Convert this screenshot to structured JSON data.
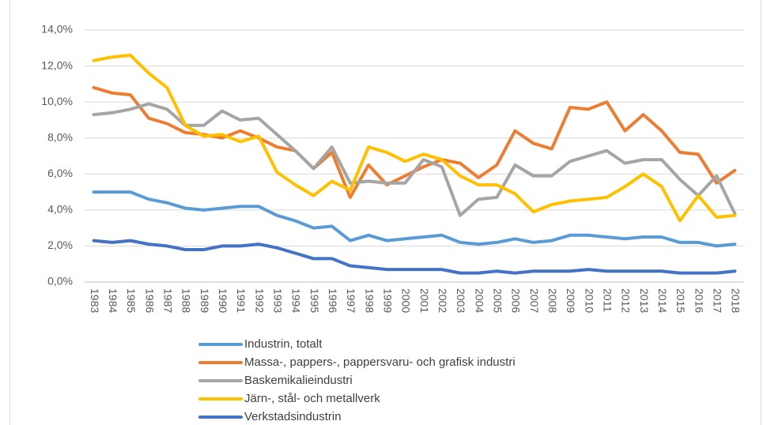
{
  "chart_data": {
    "type": "line",
    "categories": [
      "1983",
      "1984",
      "1985",
      "1986",
      "1987",
      "1988",
      "1989",
      "1990",
      "1991",
      "1992",
      "1993",
      "1994",
      "1995",
      "1996",
      "1997",
      "1998",
      "1999",
      "2000",
      "2001",
      "2002",
      "2003",
      "2004",
      "2005",
      "2006",
      "2007",
      "2008",
      "2009",
      "2010",
      "2011",
      "2012",
      "2013",
      "2014",
      "2015",
      "2016",
      "2017",
      "2018"
    ],
    "series": [
      {
        "name": "Industrin, totalt",
        "color": "#5b9bd5",
        "values": [
          5.0,
          5.0,
          5.0,
          4.6,
          4.4,
          4.1,
          4.0,
          4.1,
          4.2,
          4.2,
          3.7,
          3.4,
          3.0,
          3.1,
          2.3,
          2.6,
          2.3,
          2.4,
          2.5,
          2.6,
          2.2,
          2.1,
          2.2,
          2.4,
          2.2,
          2.3,
          2.6,
          2.6,
          2.5,
          2.4,
          2.5,
          2.5,
          2.2,
          2.2,
          2.0,
          2.1
        ]
      },
      {
        "name": "Massa-, pappers-, pappersvaru- och grafisk industri",
        "color": "#ed7d31",
        "values": [
          10.8,
          10.5,
          10.4,
          9.1,
          8.8,
          8.3,
          8.2,
          8.0,
          8.4,
          8.0,
          7.5,
          7.3,
          6.3,
          7.2,
          4.7,
          6.5,
          5.4,
          5.9,
          6.4,
          6.8,
          6.6,
          5.8,
          6.5,
          8.4,
          7.7,
          7.4,
          9.7,
          9.6,
          10.0,
          8.4,
          9.3,
          8.4,
          7.2,
          7.1,
          5.5,
          6.2
        ]
      },
      {
        "name": "Baskemikalieindustri",
        "color": "#a5a5a5",
        "values": [
          9.3,
          9.4,
          9.6,
          9.9,
          9.6,
          8.7,
          8.7,
          9.5,
          9.0,
          9.1,
          8.2,
          7.3,
          6.3,
          7.5,
          5.5,
          5.6,
          5.5,
          5.5,
          6.8,
          6.4,
          3.7,
          4.6,
          4.7,
          6.5,
          5.9,
          5.9,
          6.7,
          7.0,
          7.3,
          6.6,
          6.8,
          6.8,
          5.7,
          4.8,
          5.9,
          3.8
        ]
      },
      {
        "name": "Järn-, stål- och metallverk",
        "color": "#ffc000",
        "values": [
          12.3,
          12.5,
          12.6,
          11.6,
          10.8,
          8.7,
          8.1,
          8.2,
          7.8,
          8.1,
          6.1,
          5.4,
          4.8,
          5.6,
          5.1,
          7.5,
          7.2,
          6.7,
          7.1,
          6.8,
          5.9,
          5.4,
          5.4,
          4.9,
          3.9,
          4.3,
          4.5,
          4.6,
          4.7,
          5.3,
          6.0,
          5.3,
          3.4,
          4.8,
          3.6,
          3.7
        ]
      },
      {
        "name": "Verkstadsindustrin",
        "color": "#4472c4",
        "values": [
          2.3,
          2.2,
          2.3,
          2.1,
          2.0,
          1.8,
          1.8,
          2.0,
          2.0,
          2.1,
          1.9,
          1.6,
          1.3,
          1.3,
          0.9,
          0.8,
          0.7,
          0.7,
          0.7,
          0.7,
          0.5,
          0.5,
          0.6,
          0.5,
          0.6,
          0.6,
          0.6,
          0.7,
          0.6,
          0.6,
          0.6,
          0.6,
          0.5,
          0.5,
          0.5,
          0.6
        ]
      }
    ],
    "ylim": [
      0,
      14
    ],
    "yticks": [
      {
        "value": 0,
        "label": "0,0%"
      },
      {
        "value": 2,
        "label": "2,0%"
      },
      {
        "value": 4,
        "label": "4,0%"
      },
      {
        "value": 6,
        "label": "6,0%"
      },
      {
        "value": 8,
        "label": "8,0%"
      },
      {
        "value": 10,
        "label": "10,0%"
      },
      {
        "value": 12,
        "label": "12,0%"
      },
      {
        "value": 14,
        "label": "14,0%"
      }
    ],
    "grid": true
  }
}
